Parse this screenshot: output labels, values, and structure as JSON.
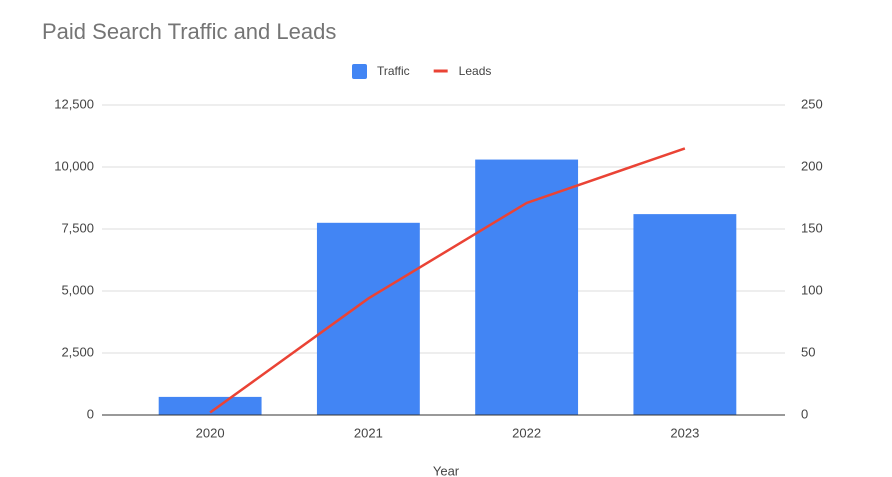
{
  "chart_data": {
    "type": "combo",
    "title": "Paid Search Traffic and Leads",
    "x_label": "Year",
    "categories": [
      "2020",
      "2021",
      "2022",
      "2023"
    ],
    "series": [
      {
        "name": "Traffic",
        "type": "bar",
        "color": "#4285f4",
        "values": [
          730,
          7750,
          10300,
          8100
        ]
      },
      {
        "name": "Leads",
        "type": "line",
        "axis": "y2",
        "color": "#ea4335",
        "values": [
          2,
          94,
          171,
          215
        ]
      }
    ],
    "ylim": [
      0,
      12500
    ],
    "yticks": [
      0,
      {
        "value": 2500,
        "label": "2,500"
      },
      {
        "value": 5000,
        "label": "5,000"
      },
      {
        "value": 7500,
        "label": "7,500"
      },
      {
        "value": 10000,
        "label": "10,000"
      },
      {
        "value": 12500,
        "label": "12,500"
      }
    ],
    "y2lim": [
      0,
      250
    ],
    "y2ticks": [
      0,
      50,
      100,
      150,
      200,
      250
    ],
    "grid": true,
    "legend": "top"
  }
}
